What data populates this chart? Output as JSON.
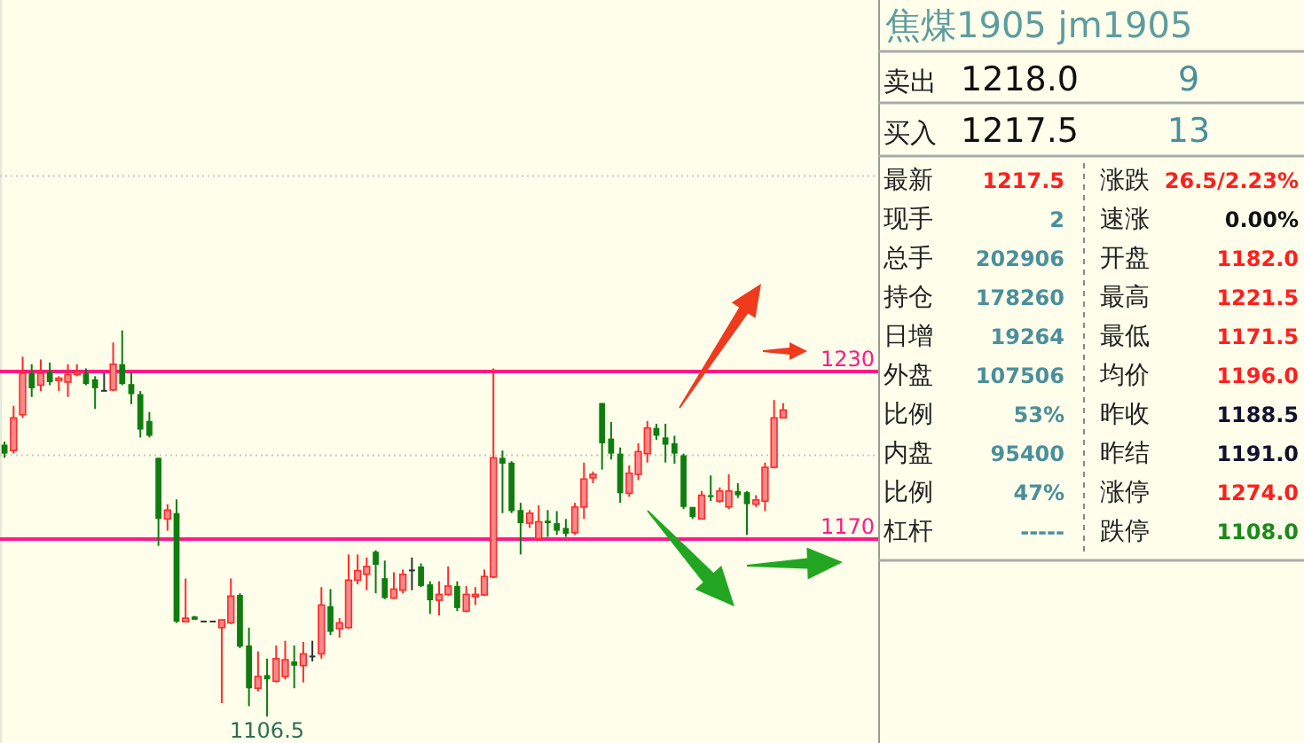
{
  "chart_data": [
    {
      "type": "candlestick",
      "categories": [
        null,
        null,
        null,
        null,
        null,
        null,
        null,
        null,
        null,
        null,
        null,
        null,
        null,
        null,
        null,
        null,
        null,
        null,
        null,
        null,
        null,
        null,
        null,
        null,
        null,
        null,
        null,
        null,
        null,
        null,
        null,
        null,
        null,
        null,
        null,
        null,
        null,
        null,
        null,
        null,
        null,
        null,
        null,
        null,
        null,
        null,
        null,
        null,
        null,
        null,
        null,
        null,
        null,
        null,
        null,
        null,
        null,
        null,
        null,
        null,
        null,
        null,
        null,
        null,
        null,
        null,
        null,
        null,
        null,
        null,
        null,
        null,
        null,
        null,
        null,
        null,
        null,
        null,
        null,
        null,
        null,
        null,
        null,
        null,
        null,
        null,
        null
      ],
      "ohlc": [
        [
          1203.8,
          1204.9,
          1199.1,
          1200.6
        ],
        [
          1201.7,
          1217.7,
          1200.6,
          1213.4
        ],
        [
          1214.5,
          1235.3,
          1213.4,
          1229.4
        ],
        [
          1229.4,
          1232.6,
          1220.9,
          1224.0
        ],
        [
          1225.1,
          1234.3,
          1223.0,
          1229.4
        ],
        [
          1229.8,
          1233.2,
          1225.1,
          1226.2
        ],
        [
          1226.8,
          1228.3,
          1223.0,
          1227.6
        ],
        [
          1226.2,
          1232.6,
          1220.9,
          1228.9
        ],
        [
          1228.9,
          1232.6,
          1228.3,
          1229.8
        ],
        [
          1229.4,
          1231.1,
          1225.1,
          1225.5
        ],
        [
          1227.2,
          1228.3,
          1216.6,
          1224.0
        ],
        [
          1223.4,
          1229.4,
          1223.0,
          1223.4
        ],
        [
          1223.4,
          1240.4,
          1223.0,
          1232.6
        ],
        [
          1232.6,
          1244.7,
          1225.1,
          1225.5
        ],
        [
          1225.5,
          1229.8,
          1218.3,
          1221.9
        ],
        [
          1221.9,
          1223.0,
          1206.4,
          1209.2
        ],
        [
          1212.3,
          1215.5,
          1206.4,
          1207.0
        ],
        [
          1199.1,
          1199.1,
          1167.6,
          1177.2
        ],
        [
          1177.2,
          1182.5,
          1173.0,
          1180.4
        ],
        [
          1179.3,
          1184.2,
          1140.0,
          1140.4
        ],
        [
          1140.4,
          1155.9,
          1140.4,
          1141.7
        ],
        [
          1142.3,
          1142.5,
          1141.1,
          1141.1
        ],
        [
          1140.8,
          1140.8,
          1140.8,
          1140.8
        ],
        [
          1140.8,
          1140.8,
          1140.8,
          1140.8
        ],
        [
          1138.3,
          1141.1,
          1111.3,
          1141.1
        ],
        [
          1140.0,
          1155.9,
          1139.6,
          1149.6
        ],
        [
          1150.0,
          1150.6,
          1131.0,
          1131.5
        ],
        [
          1131.9,
          1138.3,
          1110.2,
          1116.6
        ],
        [
          1116.6,
          1129.8,
          1115.5,
          1120.8
        ],
        [
          1121.3,
          1127.2,
          1106.5,
          1119.8
        ],
        [
          1119.1,
          1131.9,
          1118.7,
          1127.2
        ],
        [
          1120.8,
          1133.6,
          1119.8,
          1126.8
        ],
        [
          1126.2,
          1131.9,
          1116.6,
          1124.7
        ],
        [
          1124.7,
          1133.2,
          1118.7,
          1128.9
        ],
        [
          1128.3,
          1133.6,
          1126.2,
          1128.3
        ],
        [
          1128.9,
          1152.8,
          1127.2,
          1146.4
        ],
        [
          1146.0,
          1152.1,
          1135.7,
          1136.8
        ],
        [
          1137.9,
          1141.7,
          1134.7,
          1140.0
        ],
        [
          1138.3,
          1164.5,
          1137.9,
          1155.3
        ],
        [
          1155.3,
          1164.5,
          1153.8,
          1158.7
        ],
        [
          1157.4,
          1163.4,
          1151.7,
          1160.2
        ],
        [
          1165.5,
          1166.0,
          1150.6,
          1160.8
        ],
        [
          1156.0,
          1162.3,
          1148.5,
          1148.9
        ],
        [
          1148.9,
          1158.1,
          1148.5,
          1152.1
        ],
        [
          1151.7,
          1159.1,
          1150.6,
          1157.4
        ],
        [
          1159.1,
          1163.4,
          1151.7,
          1159.1
        ],
        [
          1160.2,
          1161.3,
          1152.8,
          1153.2
        ],
        [
          1153.8,
          1154.9,
          1143.2,
          1148.1
        ],
        [
          1148.1,
          1154.9,
          1142.6,
          1150.2
        ],
        [
          1150.2,
          1160.2,
          1149.6,
          1153.2
        ],
        [
          1153.2,
          1154.9,
          1144.2,
          1145.3
        ],
        [
          1144.2,
          1153.2,
          1143.8,
          1150.2
        ],
        [
          1149.4,
          1152.8,
          1146.4,
          1150.2
        ],
        [
          1150.0,
          1159.1,
          1149.6,
          1156.6
        ],
        [
          1156.4,
          1231.1,
          1156.0,
          1199.1
        ],
        [
          1199.1,
          1201.7,
          1179.3,
          1197.0
        ],
        [
          1197.4,
          1197.9,
          1179.3,
          1180.0
        ],
        [
          1180.4,
          1183.0,
          1164.5,
          1175.7
        ],
        [
          1175.7,
          1180.4,
          1174.0,
          1179.3
        ],
        [
          1170.2,
          1182.1,
          1169.8,
          1176.2
        ],
        [
          1176.6,
          1180.4,
          1170.8,
          1175.7
        ],
        [
          1175.7,
          1180.0,
          1171.5,
          1173.0
        ],
        [
          1174.0,
          1177.2,
          1170.8,
          1171.9
        ],
        [
          1172.3,
          1183.0,
          1171.5,
          1181.5
        ],
        [
          1181.5,
          1197.4,
          1177.2,
          1191.5
        ],
        [
          1191.9,
          1194.2,
          1190.0,
          1193.2
        ],
        [
          1218.7,
          1218.7,
          1194.9,
          1204.3
        ],
        [
          1206.0,
          1211.9,
          1198.5,
          1200.6
        ],
        [
          1200.6,
          1202.8,
          1183.0,
          1186.4
        ],
        [
          1186.4,
          1196.4,
          1185.1,
          1193.6
        ],
        [
          1193.2,
          1204.3,
          1191.1,
          1201.3
        ],
        [
          1200.6,
          1212.3,
          1197.4,
          1209.8
        ],
        [
          1209.8,
          1211.3,
          1205.5,
          1207.0
        ],
        [
          1206.4,
          1211.3,
          1197.4,
          1203.8
        ],
        [
          1204.3,
          1207.0,
          1197.0,
          1200.6
        ],
        [
          1200.0,
          1200.6,
          1180.8,
          1181.5
        ],
        [
          1181.5,
          1181.5,
          1177.2,
          1177.9
        ],
        [
          1177.2,
          1187.2,
          1177.2,
          1185.7
        ],
        [
          1185.7,
          1192.8,
          1183.6,
          1185.1
        ],
        [
          1183.6,
          1188.5,
          1183.0,
          1187.2
        ],
        [
          1181.5,
          1193.2,
          1180.8,
          1187.2
        ],
        [
          1187.2,
          1190.0,
          1184.7,
          1185.7
        ],
        [
          1186.8,
          1187.2,
          1171.5,
          1182.5
        ],
        [
          1182.5,
          1185.7,
          1181.5,
          1184.0
        ],
        [
          1183.6,
          1197.4,
          1180.0,
          1195.7
        ],
        [
          1195.7,
          1219.8,
          1195.3,
          1213.4
        ],
        [
          1213.4,
          1218.7,
          1213.4,
          1216.2
        ]
      ],
      "ylim": [
        1097,
        1363
      ],
      "yticks": [
        1170,
        1230
      ],
      "ref_lines": [
        {
          "axis": "y",
          "value": 1230,
          "color": "#ff1a86"
        },
        {
          "axis": "y",
          "value": 1170,
          "color": "#ff1a86"
        },
        {
          "axis": "y",
          "value": 1200,
          "color": "#c8c8c8",
          "line_style": "dotted"
        },
        {
          "axis": "y",
          "value": 1300,
          "color": "#c8c8c8",
          "line_style": "dotted"
        }
      ],
      "annotations": [
        {
          "text": "1106.5",
          "y": 1106.5
        }
      ]
    },
    {
      "type": "other",
      "title": "焦煤1905  jm1905",
      "annotations": [
        "卖出",
        "1218.0",
        "9",
        "买入",
        "1217.5",
        "13",
        "最新",
        "1217.5",
        "涨跌",
        "26.5/2.23%",
        "现手",
        "2",
        "速涨",
        "0.00%",
        "总手",
        "202906",
        "开盘",
        "1182.0",
        "持仓",
        "178260",
        "最高",
        "1221.5",
        "日增",
        "19264",
        "最低",
        "1171.5",
        "外盘",
        "107506",
        "均价",
        "1196.0",
        "比例",
        "53%",
        "昨收",
        "1188.5",
        "内盘",
        "95400",
        "昨结",
        "1191.0",
        "比例",
        "47%",
        "涨停",
        "1274.0",
        "杠杆",
        "-----",
        "跌停",
        "1108.0"
      ],
      "colors": [
        "#202020",
        "#101010",
        "#4a8f9a",
        "#202020",
        "#101010",
        "#4a8f9a",
        "#202020",
        "#ff1e1e",
        "#202020",
        "#ff1e1e",
        "#202020",
        "#4a8f9a",
        "#202020",
        "#101010",
        "#202020",
        "#4a8f9a",
        "#202020",
        "#ff1e1e",
        "#202020",
        "#4a8f9a",
        "#202020",
        "#ff1e1e",
        "#202020",
        "#4a8f9a",
        "#202020",
        "#ff1e1e",
        "#202020",
        "#4a8f9a",
        "#202020",
        "#ff1e1e",
        "#202020",
        "#4a8f9a",
        "#202020",
        "#101030",
        "#202020",
        "#4a8f9a",
        "#202020",
        "#101030",
        "#202020",
        "#4a8f9a",
        "#202020",
        "#ff1e1e",
        "#202020",
        "#4a8f9a",
        "#202020",
        "#1a8a1a"
      ]
    }
  ]
}
